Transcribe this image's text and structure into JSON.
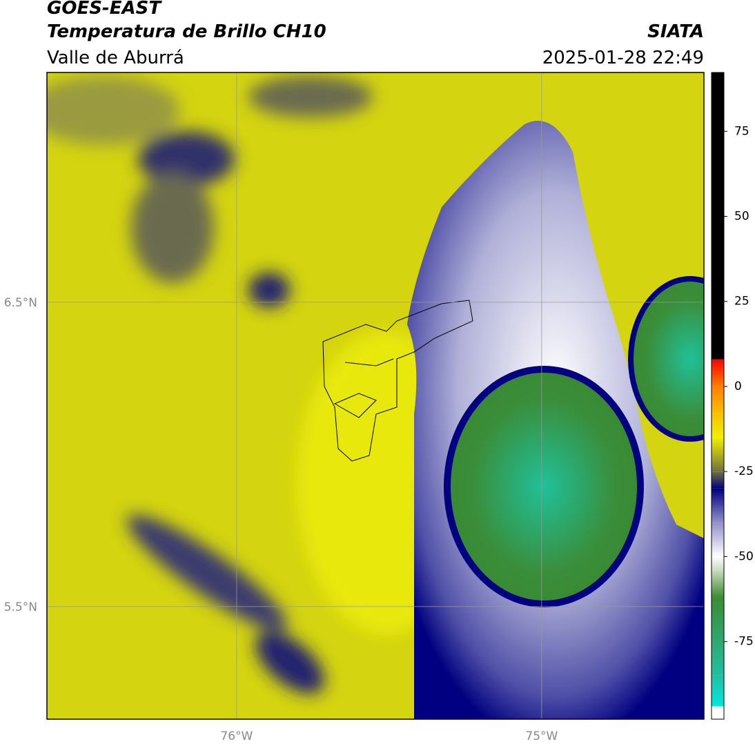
{
  "header": {
    "product": "GOES-EAST",
    "title": "Temperatura de Brillo CH10",
    "region": "Valle de Aburrá",
    "source": "SIATA",
    "datetime": "2025-01-28 22:49"
  },
  "map": {
    "xlim": [
      -76.622,
      -74.468
    ],
    "ylim": [
      5.13,
      7.255
    ],
    "grid": true,
    "xticks": [
      {
        "value": -76,
        "label": "76°W"
      },
      {
        "value": -75,
        "label": "75°W"
      }
    ],
    "yticks": [
      {
        "value": 6.5,
        "label": "6.5°N"
      },
      {
        "value": 5.5,
        "label": "5.5°N"
      }
    ]
  },
  "colorbar": {
    "lim": [
      -97.8,
      92.3
    ],
    "ticks": [
      75,
      50,
      25,
      0,
      -25,
      -50,
      -75
    ],
    "stops": [
      {
        "value": -97.8,
        "color": "#ffffff"
      },
      {
        "value": -94,
        "color": "#ffffff"
      },
      {
        "value": -94,
        "color": "#00e8e0"
      },
      {
        "value": -85,
        "color": "#20c0a0"
      },
      {
        "value": -62,
        "color": "#3c8c34"
      },
      {
        "value": -54,
        "color": "#c8dcc0"
      },
      {
        "value": -50,
        "color": "#ffffff"
      },
      {
        "value": -40,
        "color": "#9090c8"
      },
      {
        "value": -30,
        "color": "#000080"
      },
      {
        "value": -25,
        "color": "#707040"
      },
      {
        "value": -15,
        "color": "#f0f000"
      },
      {
        "value": -8,
        "color": "#f8c000"
      },
      {
        "value": 0,
        "color": "#ff8000"
      },
      {
        "value": 8,
        "color": "#ff0000"
      },
      {
        "value": 8,
        "color": "#000000"
      },
      {
        "value": 92.3,
        "color": "#000000"
      }
    ]
  }
}
